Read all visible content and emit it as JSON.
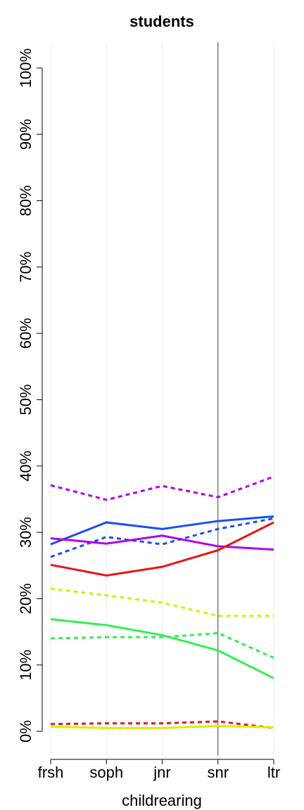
{
  "chart_data": {
    "type": "line",
    "title": "students",
    "x_label": "childrearing",
    "categories": [
      "frsh",
      "soph",
      "jnr",
      "snr",
      "ltr"
    ],
    "ylim": [
      -3.7,
      103.9
    ],
    "yticks": [
      {
        "value": 0,
        "label": "0%"
      },
      {
        "value": 10,
        "label": "10%"
      },
      {
        "value": 20,
        "label": "20%"
      },
      {
        "value": 30,
        "label": "30%"
      },
      {
        "value": 40,
        "label": "40%"
      },
      {
        "value": 50,
        "label": "50%"
      },
      {
        "value": 60,
        "label": "60%"
      },
      {
        "value": 70,
        "label": "70%"
      },
      {
        "value": 80,
        "label": "80%"
      },
      {
        "value": 90,
        "label": "90%"
      },
      {
        "value": 100,
        "label": "100%"
      }
    ],
    "grid": true,
    "vline": "snr",
    "series": [
      {
        "color": "#b000ee",
        "dashed": true,
        "values": [
          37.1,
          34.9,
          37.0,
          35.3,
          38.4
        ]
      },
      {
        "color": "#1a4ff0",
        "dashed": false,
        "values": [
          28.2,
          31.5,
          30.5,
          31.7,
          32.4
        ]
      },
      {
        "color": "#1a4ff0",
        "dashed": true,
        "values": [
          26.3,
          29.3,
          28.2,
          30.5,
          32.1
        ]
      },
      {
        "color": "#b000ee",
        "dashed": false,
        "values": [
          29.1,
          28.3,
          29.5,
          27.9,
          27.4
        ]
      },
      {
        "color": "#e8141a",
        "dashed": false,
        "values": [
          25.1,
          23.5,
          24.8,
          27.3,
          31.5
        ]
      },
      {
        "color": "#d4f000",
        "dashed": true,
        "values": [
          21.5,
          20.5,
          19.4,
          17.4,
          17.4
        ]
      },
      {
        "color": "#33ee55",
        "dashed": false,
        "values": [
          16.9,
          16.0,
          14.5,
          12.2,
          8.0
        ]
      },
      {
        "color": "#33ee55",
        "dashed": true,
        "values": [
          14.0,
          14.2,
          14.2,
          14.8,
          11.1
        ]
      },
      {
        "color": "#e8141a",
        "dashed": true,
        "values": [
          1.1,
          1.2,
          1.2,
          1.5,
          0.5
        ]
      },
      {
        "color": "#d4f000",
        "dashed": false,
        "values": [
          0.7,
          0.5,
          0.5,
          0.8,
          0.6
        ]
      }
    ]
  }
}
